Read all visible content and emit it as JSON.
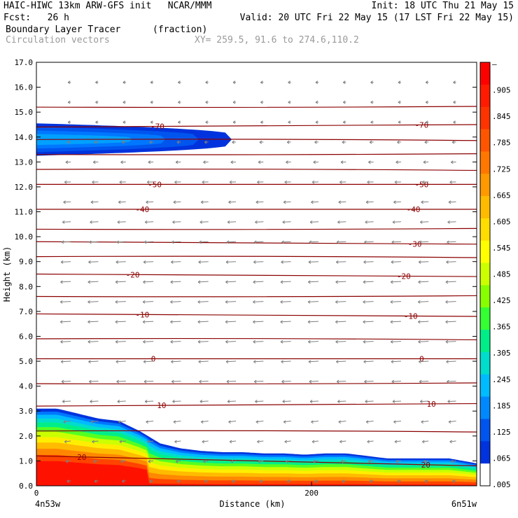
{
  "header": {
    "line1_left": "HAIC-HIWC 13km ARW-GFS init   NCAR/MMM",
    "line1_right": "Init: 18 UTC Thu 21 May 15",
    "line2_left": "Fcst:   26 h",
    "line2_right": "Valid: 20 UTC Fri 22 May 15 (17 LST Fri 22 May 15)",
    "field_name": "Boundary Layer Tracer",
    "field_units": "(fraction)",
    "vector_name": "Circulation vectors",
    "xy_info": "XY= 259.5, 91.6 to 274.6,110.2"
  },
  "chart_data": {
    "type": "heatmap",
    "title": "Boundary Layer Tracer (fraction)",
    "xlabel": "Distance (km)",
    "ylabel": "Height (km)",
    "xlim": [
      0,
      320
    ],
    "ylim": [
      0,
      17
    ],
    "x_ticks": [
      0,
      200
    ],
    "x_tick_labels": [
      "0",
      "200"
    ],
    "x_end_labels": [
      "4n53w",
      "6n51w"
    ],
    "y_ticks": [
      0,
      1,
      2,
      3,
      4,
      5,
      6,
      7,
      8,
      9,
      10,
      11,
      12,
      13,
      14,
      15,
      16,
      17
    ],
    "y_tick_labels": [
      "0.0",
      "1.0",
      "2.0",
      "3.0",
      "4.0",
      "5.0",
      "6.0",
      "7.0",
      "8.0",
      "9.0",
      "10.0",
      "11.0",
      "12.0",
      "13.0",
      "14.0",
      "15.0",
      "16.0",
      "17.0"
    ],
    "colorbar": {
      "labels": [
        "–",
        ".905",
        ".845",
        ".785",
        ".725",
        ".665",
        ".605",
        ".545",
        ".485",
        ".425",
        ".365",
        ".305",
        ".245",
        ".185",
        ".125",
        ".065",
        ".005"
      ],
      "colors": [
        "#ff0000",
        "#ff1a00",
        "#ff3300",
        "#ff5500",
        "#ff7700",
        "#ff9900",
        "#ffbb00",
        "#ffdd00",
        "#ffff00",
        "#ccff00",
        "#88ff00",
        "#33ff33",
        "#00ee88",
        "#00ddcc",
        "#00bbff",
        "#0088ff",
        "#0055ee",
        "#0033dd",
        "#ffffff"
      ]
    },
    "tracer_surface_top_km": {
      "x": [
        0,
        15,
        30,
        45,
        60,
        75,
        90,
        105,
        120,
        135,
        150,
        165,
        180,
        195,
        210,
        225,
        240,
        255,
        270,
        285,
        300,
        310,
        320
      ],
      "y": [
        3.1,
        3.1,
        2.9,
        2.7,
        2.6,
        2.2,
        1.7,
        1.5,
        1.4,
        1.35,
        1.35,
        1.3,
        1.3,
        1.25,
        1.3,
        1.3,
        1.2,
        1.1,
        1.1,
        1.1,
        1.1,
        1.0,
        0.9
      ]
    },
    "tracer_upper_layer": {
      "x_extent": [
        0,
        142
      ],
      "base_km": 13.5,
      "top_km": 14.8,
      "peak_km": 13.9
    },
    "temperature_contours": [
      {
        "label": "-70",
        "y_left": 14.4,
        "y_right": 14.5,
        "label_x": [
          88,
          280
        ]
      },
      {
        "label": "-50",
        "y_left": 12.1,
        "y_right": 12.1,
        "label_x": [
          86,
          280
        ]
      },
      {
        "label": "-40",
        "y_left": 11.1,
        "y_right": 11.1,
        "label_x": [
          77,
          274
        ]
      },
      {
        "label": "-30",
        "y_left": 9.8,
        "y_right": 9.7,
        "label_x": [
          275
        ]
      },
      {
        "label": "-20",
        "y_left": 8.5,
        "y_right": 8.4,
        "label_x": [
          70,
          267
        ]
      },
      {
        "label": "-10",
        "y_left": 6.9,
        "y_right": 6.8,
        "label_x": [
          77,
          272
        ]
      },
      {
        "label": "0",
        "y_left": 5.1,
        "y_right": 5.1,
        "label_x": [
          85,
          280
        ]
      },
      {
        "label": "10",
        "y_left": 3.2,
        "y_right": 3.3,
        "label_x": [
          91,
          287
        ]
      },
      {
        "label": "20",
        "y_left": 1.2,
        "y_right": 0.8,
        "label_x": [
          33,
          283
        ]
      }
    ],
    "unlabeled_contours_km": [
      15.2,
      13.9,
      13.3,
      12.7,
      10.3,
      9.2,
      7.6,
      5.9,
      4.1,
      2.2
    ],
    "vectors": {
      "x_spacing_km": 20,
      "y_spacing_km": 0.8,
      "dominant_direction": "westward",
      "color": "#7f7f7f"
    },
    "contour_color": "#8b0000",
    "grid": false,
    "legend_placement": "right"
  }
}
